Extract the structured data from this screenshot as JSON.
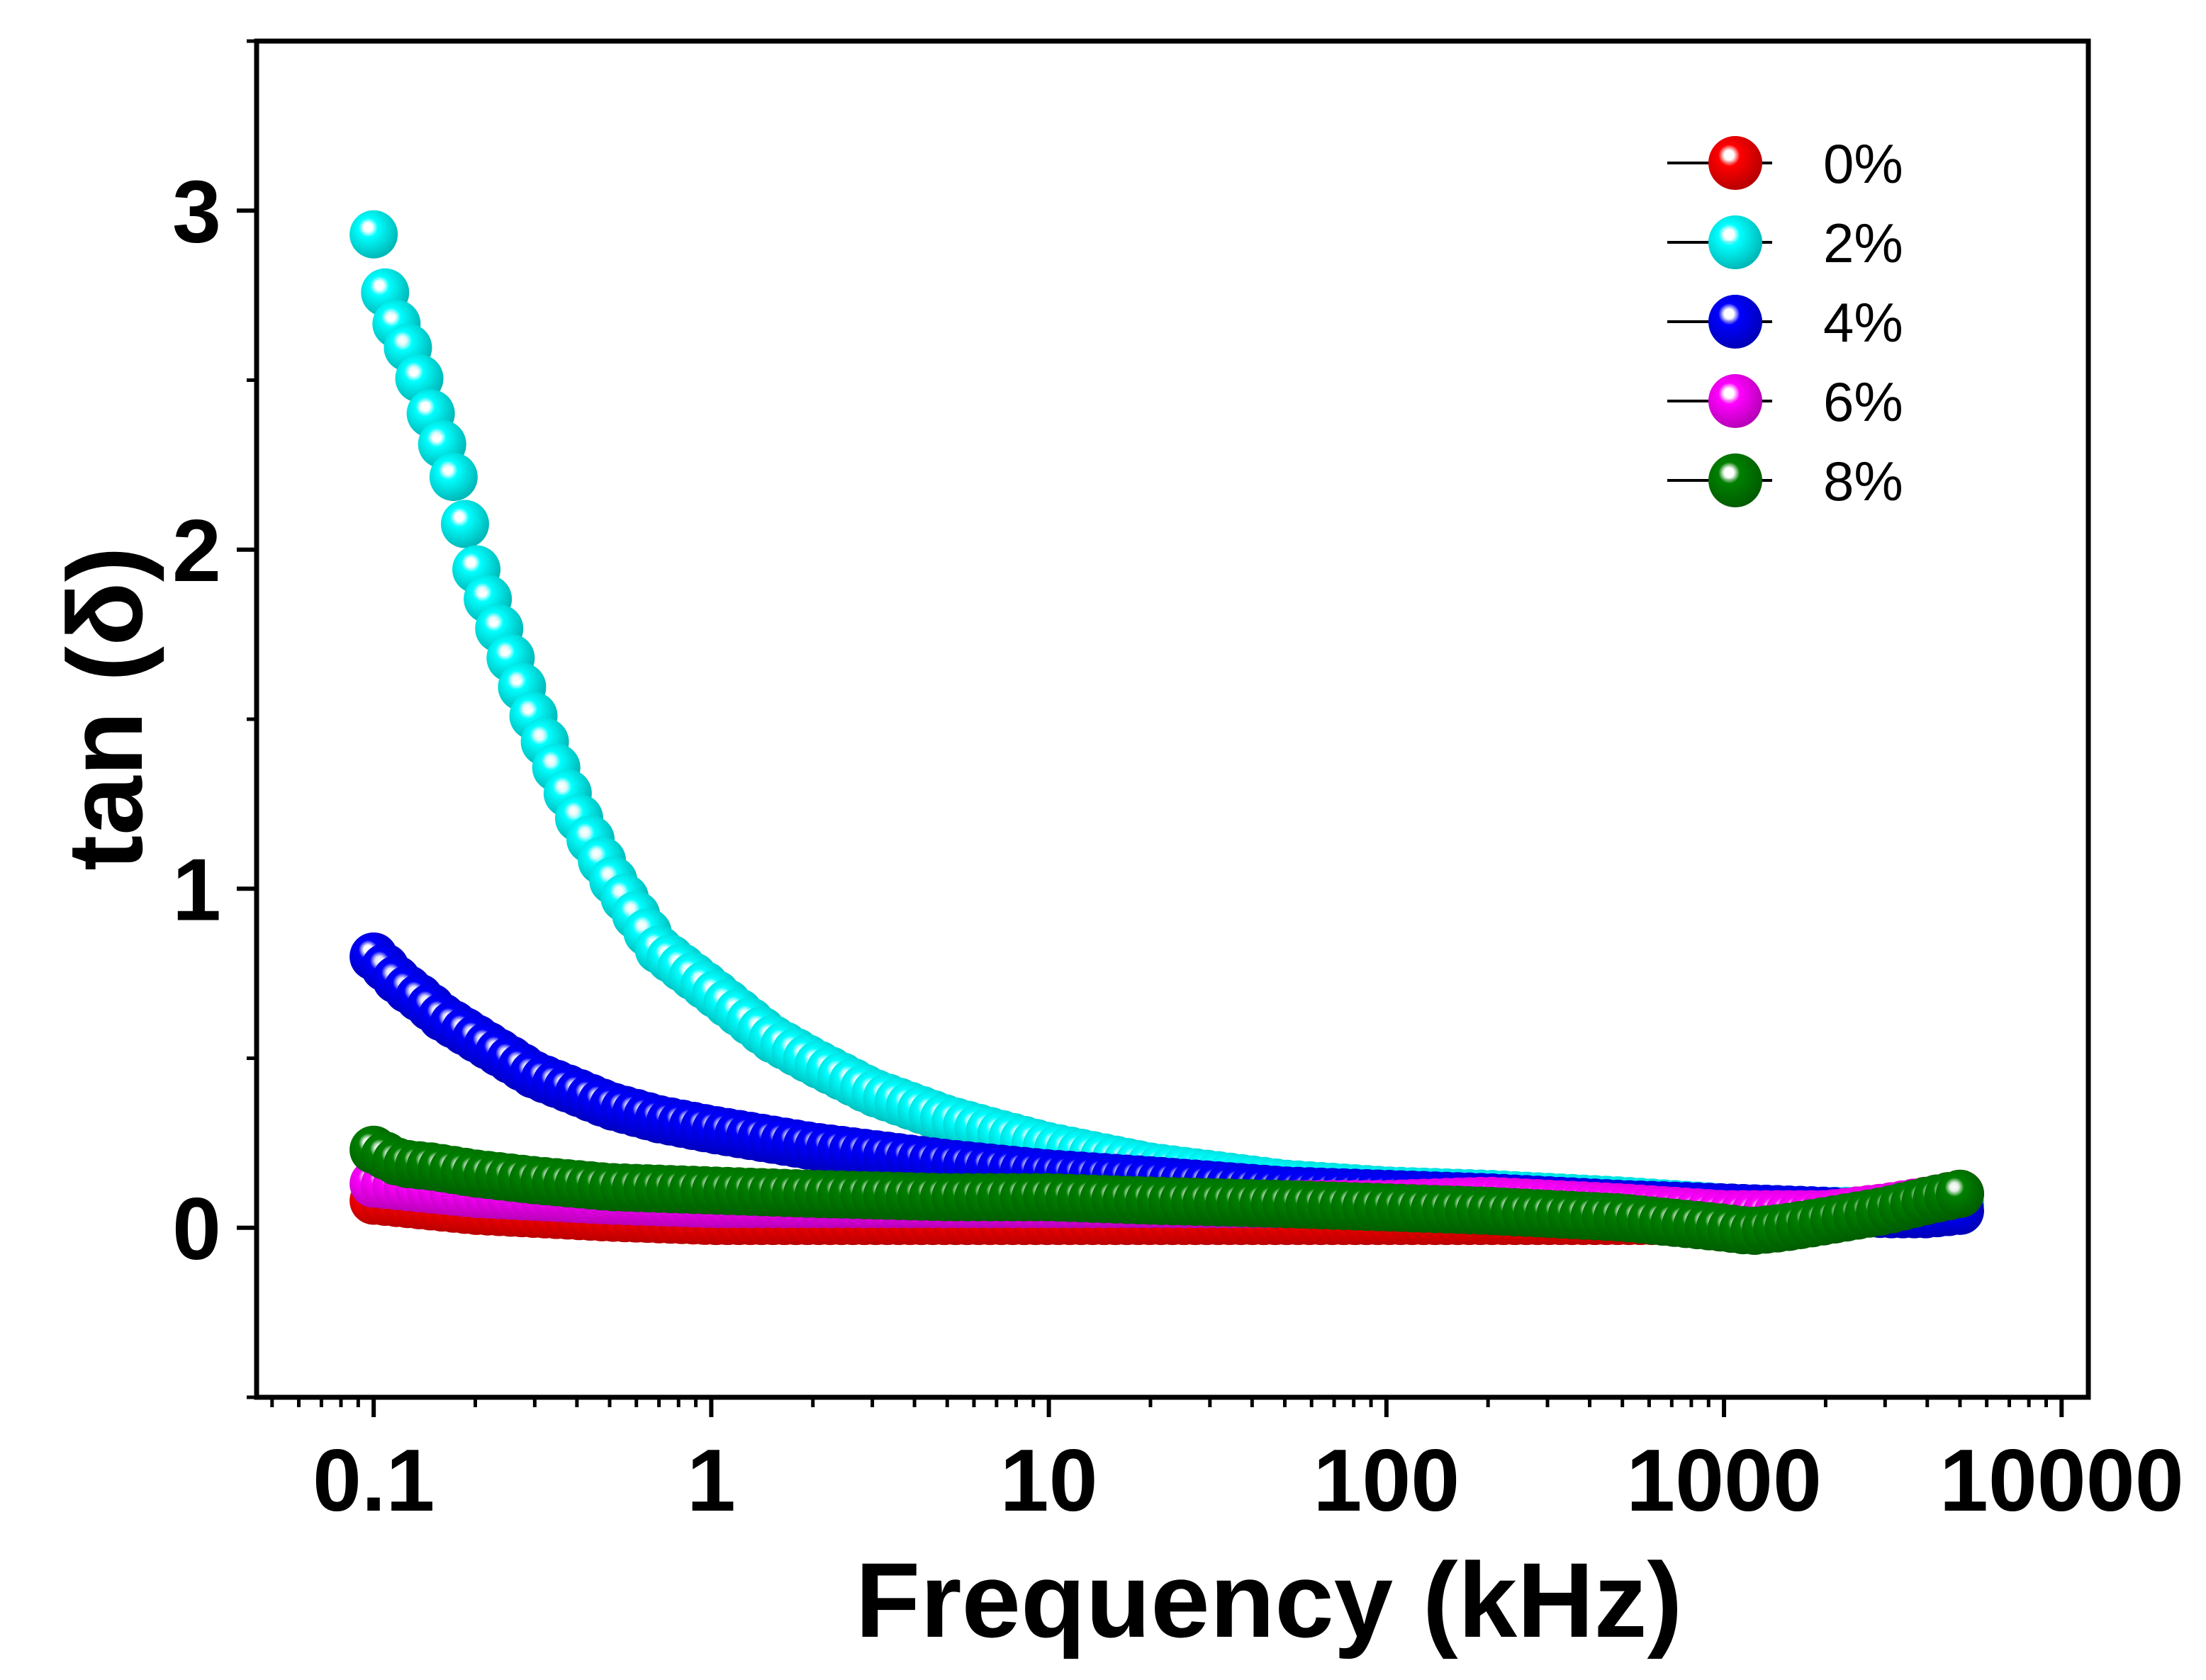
{
  "chart_data": {
    "type": "scatter",
    "title": "",
    "xlabel": "Frequency (kHz)",
    "ylabel": "tan (δ)",
    "xscale": "log",
    "xlim": [
      0.045,
      12000
    ],
    "ylim": [
      -0.5,
      3.5
    ],
    "x_ticks": [
      0.1,
      1,
      10,
      100,
      1000,
      10000
    ],
    "x_tick_labels": [
      "0.1",
      "1",
      "10",
      "100",
      "1000",
      "10000"
    ],
    "y_ticks": [
      0,
      1,
      2,
      3
    ],
    "y_tick_labels": [
      "0",
      "1",
      "2",
      "3"
    ],
    "grid": false,
    "legend_position": "top-right",
    "marker": "sphere",
    "series": [
      {
        "name": "0%",
        "color": "#ff0000",
        "x": [
          0.1,
          0.2,
          0.5,
          1,
          2,
          5,
          10,
          20,
          50,
          100,
          200,
          500,
          1000,
          2000,
          3000,
          4000,
          5000
        ],
        "values": [
          0.08,
          0.05,
          0.03,
          0.02,
          0.02,
          0.02,
          0.02,
          0.02,
          0.02,
          0.02,
          0.02,
          0.02,
          0.02,
          0.04,
          0.06,
          0.08,
          0.1
        ]
      },
      {
        "name": "2%",
        "color": "#00ffff",
        "x": [
          0.1,
          0.11,
          0.13,
          0.15,
          0.17,
          0.2,
          0.25,
          0.3,
          0.4,
          0.5,
          0.7,
          1,
          1.5,
          2,
          3,
          5,
          7,
          10,
          20,
          50,
          100,
          200,
          500,
          1000,
          2000,
          3000,
          4000,
          5000
        ],
        "values": [
          2.93,
          2.72,
          2.57,
          2.38,
          2.24,
          1.95,
          1.7,
          1.5,
          1.22,
          1.04,
          0.82,
          0.7,
          0.56,
          0.49,
          0.4,
          0.32,
          0.28,
          0.24,
          0.18,
          0.13,
          0.11,
          0.1,
          0.08,
          0.06,
          0.05,
          0.05,
          0.06,
          0.07
        ]
      },
      {
        "name": "4%",
        "color": "#0000ff",
        "x": [
          0.1,
          0.11,
          0.12,
          0.14,
          0.16,
          0.2,
          0.25,
          0.3,
          0.4,
          0.5,
          0.7,
          1,
          2,
          5,
          10,
          20,
          50,
          100,
          200,
          500,
          1000,
          2000,
          3000,
          4000,
          5000
        ],
        "values": [
          0.8,
          0.76,
          0.72,
          0.67,
          0.62,
          0.56,
          0.5,
          0.45,
          0.4,
          0.36,
          0.32,
          0.29,
          0.24,
          0.19,
          0.16,
          0.14,
          0.11,
          0.1,
          0.09,
          0.07,
          0.06,
          0.05,
          0.04,
          0.04,
          0.05
        ]
      },
      {
        "name": "6%",
        "color": "#ff00ff",
        "x": [
          0.1,
          0.2,
          0.5,
          1,
          2,
          5,
          10,
          20,
          50,
          100,
          200,
          500,
          1000,
          2000,
          3000,
          4000,
          5000
        ],
        "values": [
          0.13,
          0.1,
          0.08,
          0.07,
          0.07,
          0.07,
          0.07,
          0.07,
          0.07,
          0.07,
          0.08,
          0.06,
          0.04,
          0.04,
          0.06,
          0.08,
          0.1
        ]
      },
      {
        "name": "8%",
        "color": "#008000",
        "x": [
          0.1,
          0.12,
          0.15,
          0.2,
          0.3,
          0.5,
          1,
          2,
          5,
          10,
          20,
          50,
          100,
          200,
          500,
          1000,
          1200,
          1500,
          2000,
          3000,
          4000,
          5000
        ],
        "values": [
          0.23,
          0.19,
          0.18,
          0.16,
          0.14,
          0.12,
          0.11,
          0.1,
          0.09,
          0.09,
          0.08,
          0.07,
          0.06,
          0.05,
          0.03,
          0.0,
          -0.01,
          0.0,
          0.02,
          0.05,
          0.08,
          0.1
        ]
      }
    ]
  }
}
